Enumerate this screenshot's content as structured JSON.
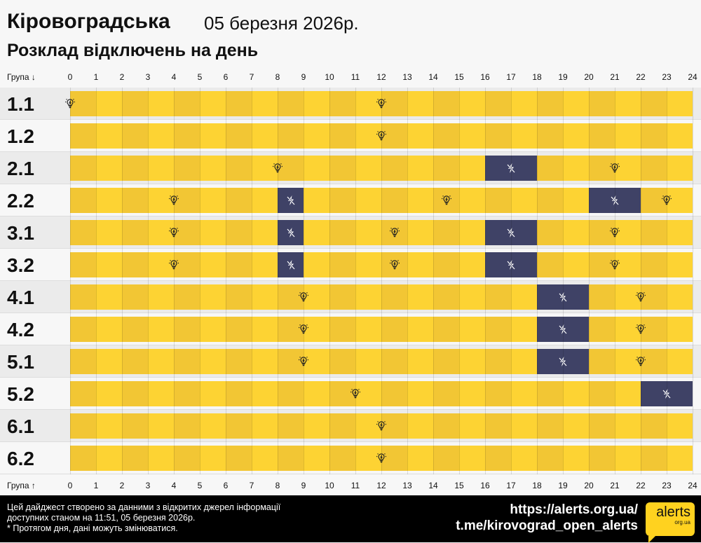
{
  "header": {
    "title": "Кіровоградська",
    "date": "05 березня 2026р.",
    "subtitle": "Розклад відключень на день"
  },
  "axis": {
    "top_label": "Група ↓",
    "bottom_label": "Група ↑",
    "hours": [
      "0",
      "1",
      "2",
      "3",
      "4",
      "5",
      "6",
      "7",
      "8",
      "9",
      "10",
      "11",
      "12",
      "13",
      "14",
      "15",
      "16",
      "17",
      "18",
      "19",
      "20",
      "21",
      "22",
      "23",
      "24"
    ]
  },
  "colors": {
    "power_on_even": "#f2c634",
    "power_on_odd": "#fdd333",
    "outage": "#3f4266",
    "row_odd": "#ebebeb",
    "row_even": "#f7f7f7"
  },
  "icons": {
    "power_on": "lightbulb-icon",
    "outage": "power-off-lightning-icon"
  },
  "groups": [
    {
      "label": "1.1",
      "outages": [],
      "power_on_marks": [
        0,
        12
      ]
    },
    {
      "label": "1.2",
      "outages": [],
      "power_on_marks": [
        12
      ]
    },
    {
      "label": "2.1",
      "outages": [
        [
          16,
          18
        ]
      ],
      "power_on_marks": [
        8,
        21
      ]
    },
    {
      "label": "2.2",
      "outages": [
        [
          8,
          9
        ],
        [
          20,
          22
        ]
      ],
      "power_on_marks": [
        4,
        14.5,
        23
      ]
    },
    {
      "label": "3.1",
      "outages": [
        [
          8,
          9
        ],
        [
          16,
          18
        ]
      ],
      "power_on_marks": [
        4,
        12.5,
        21
      ]
    },
    {
      "label": "3.2",
      "outages": [
        [
          8,
          9
        ],
        [
          16,
          18
        ]
      ],
      "power_on_marks": [
        4,
        12.5,
        21
      ]
    },
    {
      "label": "4.1",
      "outages": [
        [
          18,
          20
        ]
      ],
      "power_on_marks": [
        9,
        22
      ]
    },
    {
      "label": "4.2",
      "outages": [
        [
          18,
          20
        ]
      ],
      "power_on_marks": [
        9,
        22
      ]
    },
    {
      "label": "5.1",
      "outages": [
        [
          18,
          20
        ]
      ],
      "power_on_marks": [
        9,
        22
      ]
    },
    {
      "label": "5.2",
      "outages": [
        [
          22,
          24
        ]
      ],
      "power_on_marks": [
        11
      ]
    },
    {
      "label": "6.1",
      "outages": [],
      "power_on_marks": [
        12
      ]
    },
    {
      "label": "6.2",
      "outages": [],
      "power_on_marks": [
        12
      ]
    }
  ],
  "footer": {
    "line1": "Цей дайджест створено за данними з відкритих джерел інформації",
    "line2": "доступних станом на 11:51, 05 березня 2026р.",
    "line3": "* Протягом дня, дані можуть змінюватися.",
    "url": "https://alerts.org.ua/",
    "telegram": "t.me/kirovograd_open_alerts",
    "logo_text": "alerts",
    "logo_sub": "org.ua"
  }
}
